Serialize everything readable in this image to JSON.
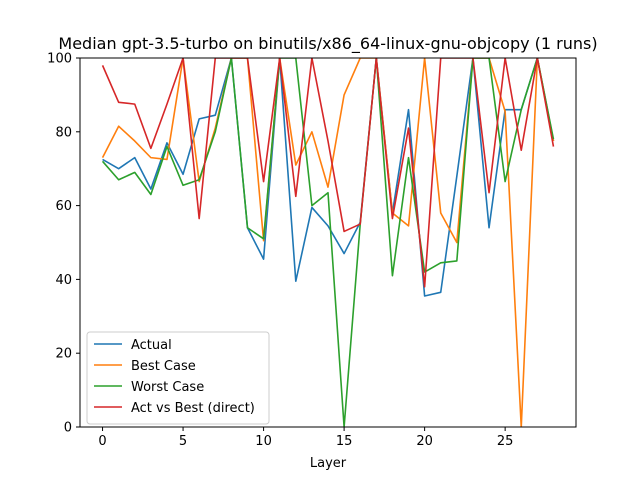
{
  "chart_data": {
    "type": "line",
    "title": "Median gpt-3.5-turbo on binutils/x86_64-linux-gnu-objcopy (1 runs)",
    "xlabel": "Layer",
    "ylabel": "",
    "xlim": [
      -1.4,
      29.4
    ],
    "ylim": [
      0,
      100
    ],
    "x_ticks": [
      0,
      5,
      10,
      15,
      20,
      25
    ],
    "y_ticks": [
      0,
      20,
      40,
      60,
      80,
      100
    ],
    "x": [
      0,
      1,
      2,
      3,
      4,
      5,
      6,
      7,
      8,
      9,
      10,
      11,
      12,
      13,
      14,
      15,
      16,
      17,
      18,
      19,
      20,
      21,
      22,
      23,
      24,
      25,
      26,
      27,
      28
    ],
    "legend_position": "lower-left",
    "series": [
      {
        "name": "Actual",
        "color": "#1f77b4",
        "values": [
          72.5,
          70,
          73,
          64.5,
          77,
          68.5,
          83.5,
          84.5,
          100,
          54,
          45.5,
          100,
          39.5,
          59.5,
          54.5,
          47,
          55.5,
          100,
          58,
          86,
          35.5,
          36.5,
          68,
          100,
          54,
          86,
          86,
          100,
          77.5
        ]
      },
      {
        "name": "Best Case",
        "color": "#ff7f0e",
        "values": [
          73,
          81.5,
          77.5,
          73,
          72.5,
          100,
          66.5,
          81,
          100,
          100,
          50.5,
          100,
          71,
          80,
          65,
          90,
          100,
          100,
          58,
          54.5,
          100,
          58,
          50,
          100,
          100,
          85.5,
          0,
          100,
          77.5
        ]
      },
      {
        "name": "Worst Case",
        "color": "#2ca02c",
        "values": [
          72,
          67,
          69,
          63,
          76,
          65.5,
          67,
          80,
          100,
          54,
          51,
          100,
          100,
          60,
          63.5,
          0,
          55,
          100,
          41,
          73,
          42,
          44.5,
          45,
          100,
          100,
          66.5,
          86,
          100,
          78
        ]
      },
      {
        "name": "Act vs Best (direct)",
        "color": "#d62728",
        "values": [
          98,
          88,
          87.5,
          75.5,
          87.5,
          100,
          56.5,
          100,
          100,
          100,
          66.5,
          100,
          62.5,
          100,
          77.5,
          53,
          55,
          100,
          56.5,
          81,
          38,
          100,
          100,
          100,
          63.5,
          100,
          75,
          100,
          76
        ]
      }
    ]
  }
}
